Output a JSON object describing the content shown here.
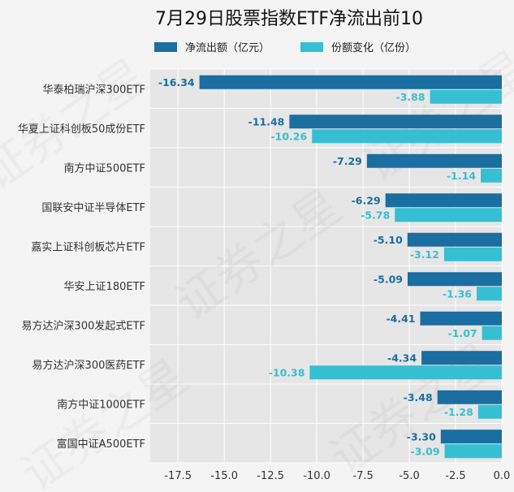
{
  "chart_data": {
    "type": "bar",
    "orientation": "horizontal",
    "title": "7月29日股票指数ETF净流出前10",
    "categories": [
      "华泰柏瑞沪深300ETF",
      "华夏上证科创板50成份ETF",
      "南方中证500ETF",
      "国联安中证半导体ETF",
      "嘉实上证科创板芯片ETF",
      "华安上证180ETF",
      "易方达沪深300发起式ETF",
      "易方达沪深300医药ETF",
      "南方中证1000ETF",
      "富国中证A500ETF"
    ],
    "series": [
      {
        "name": "净流出额（亿元）",
        "color": "#1a6ea0",
        "values": [
          -16.34,
          -11.48,
          -7.29,
          -6.29,
          -5.1,
          -5.09,
          -4.41,
          -4.34,
          -3.48,
          -3.3
        ],
        "labels": [
          "-16.34",
          "-11.48",
          "-7.29",
          "-6.29",
          "-5.10",
          "-5.09",
          "-4.41",
          "-4.34",
          "-3.48",
          "-3.30"
        ]
      },
      {
        "name": "份额变化（亿份）",
        "color": "#36bfd2",
        "values": [
          -3.88,
          -10.26,
          -1.14,
          -5.78,
          -3.12,
          -1.36,
          -1.07,
          -10.38,
          -1.28,
          -3.09
        ],
        "labels": [
          "-3.88",
          "-10.26",
          "-1.14",
          "-5.78",
          "-3.12",
          "-1.36",
          "-1.07",
          "-10.38",
          "-1.28",
          "-3.09"
        ]
      }
    ],
    "xlim": [
      -19,
      0
    ],
    "xticks": [
      -17.5,
      -15.0,
      -12.5,
      -10.0,
      -7.5,
      -5.0,
      -2.5,
      0.0
    ],
    "xtick_labels": [
      "-17.5",
      "-15.0",
      "-12.5",
      "-10.0",
      "-7.5",
      "-5.0",
      "-2.5",
      "0.0"
    ],
    "grid": true,
    "legend_position": "top",
    "watermark": "证券之星"
  }
}
